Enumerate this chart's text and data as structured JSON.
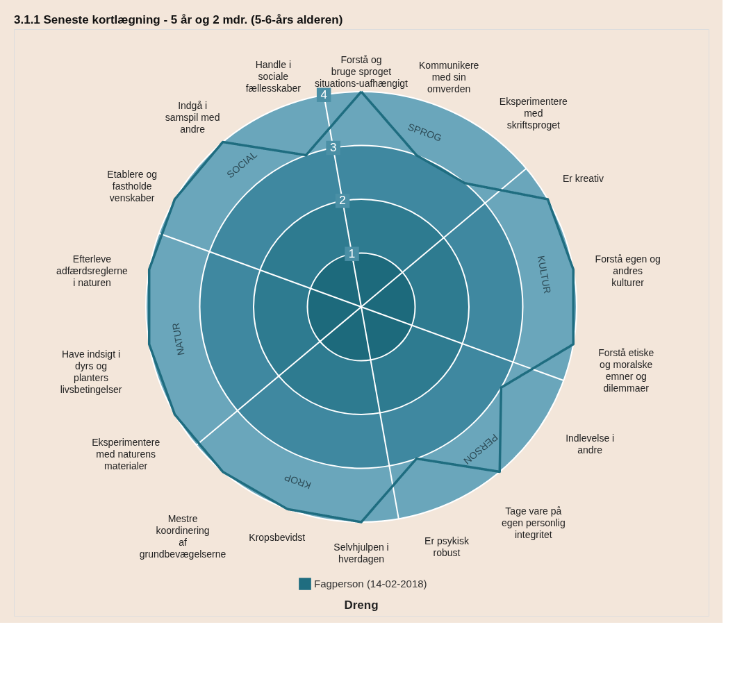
{
  "chart_data": {
    "type": "radar",
    "title": "3.1.1 Seneste kortlægning - 5 år og 2 mdr. (5-6-års alderen)",
    "categories": [
      "Forstå og bruge sproget situations-uafhængigt",
      "Kommunikere med sin omverden",
      "Eksperimentere med skriftsproget",
      "Er kreativ",
      "Forstå egen og andres kulturer",
      "Forstå etiske og moralske emner og dilemmaer",
      "Indlevelse i andre",
      "Tage vare på egen personlig integritet",
      "Er psykisk robust",
      "Selvhjulpen i hverdagen",
      "Kropsbevidst",
      "Mestre koordinering af grundbevægelserne",
      "Eksperimentere med naturens materialer",
      "Have indsigt i dyrs og planters livsbetingelser",
      "Efterleve adfærdsreglerne i naturen",
      "Etablere og fastholde venskaber",
      "Indgå i samspil med andre",
      "Handle i sociale fællesskaber"
    ],
    "series": [
      {
        "name": "Fagperson (14-02-2018)",
        "color": "#1f6d80",
        "values": [
          4,
          3,
          3,
          4,
          4,
          4,
          3,
          4,
          3,
          4,
          4,
          4,
          4,
          4,
          4,
          4,
          4,
          3
        ]
      }
    ],
    "ylim": [
      0,
      4
    ],
    "yticks": [
      1,
      2,
      3,
      4
    ],
    "grid": true,
    "legend": "bottom",
    "marker": "none",
    "line_style": "solid",
    "annotations": [
      "SPROG",
      "KULTUR",
      "PERSON",
      "KROP",
      "NATUR",
      "SOCIAL",
      "Dreng"
    ]
  }
}
